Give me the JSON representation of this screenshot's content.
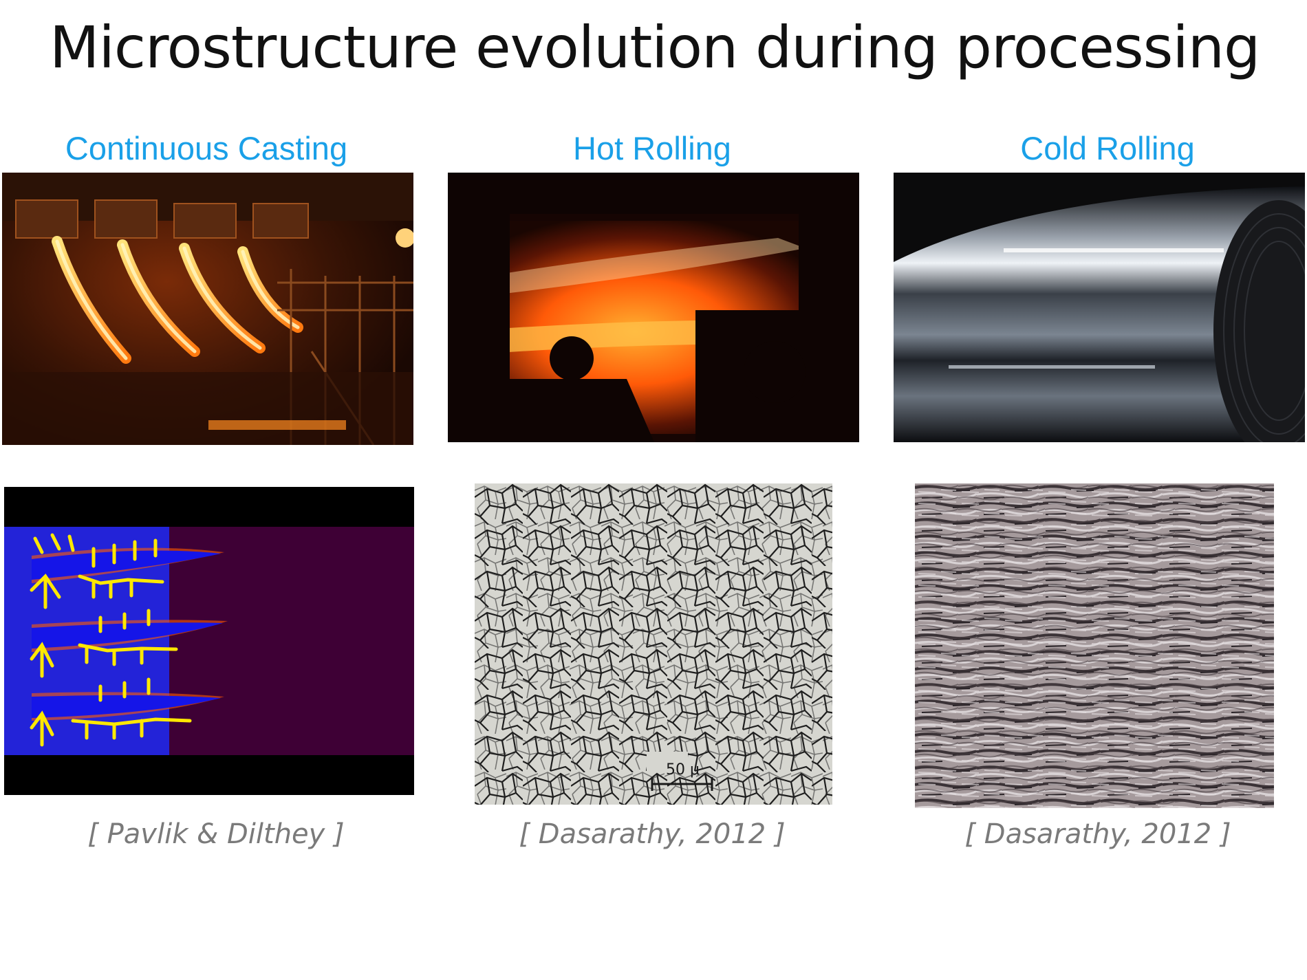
{
  "slide": {
    "title": "Microstructure evolution during processing",
    "accent_color": "#1aa0e8",
    "columns": [
      {
        "heading": "Continuous Casting",
        "photo_icon": "continuous-casting-photo",
        "micrograph_icon": "dendrite-simulation-image",
        "citation": "[ Pavlik & Dilthey ]"
      },
      {
        "heading": "Hot Rolling",
        "photo_icon": "hot-rolling-photo",
        "micrograph_icon": "grain-micrograph-image",
        "scale_label": "50 μ",
        "citation": "[ Dasarathy, 2012 ]"
      },
      {
        "heading": "Cold Rolling",
        "photo_icon": "cold-rolled-coil-photo",
        "micrograph_icon": "deformed-micrograph-image",
        "citation": "[ Dasarathy, 2012 ]"
      }
    ]
  }
}
